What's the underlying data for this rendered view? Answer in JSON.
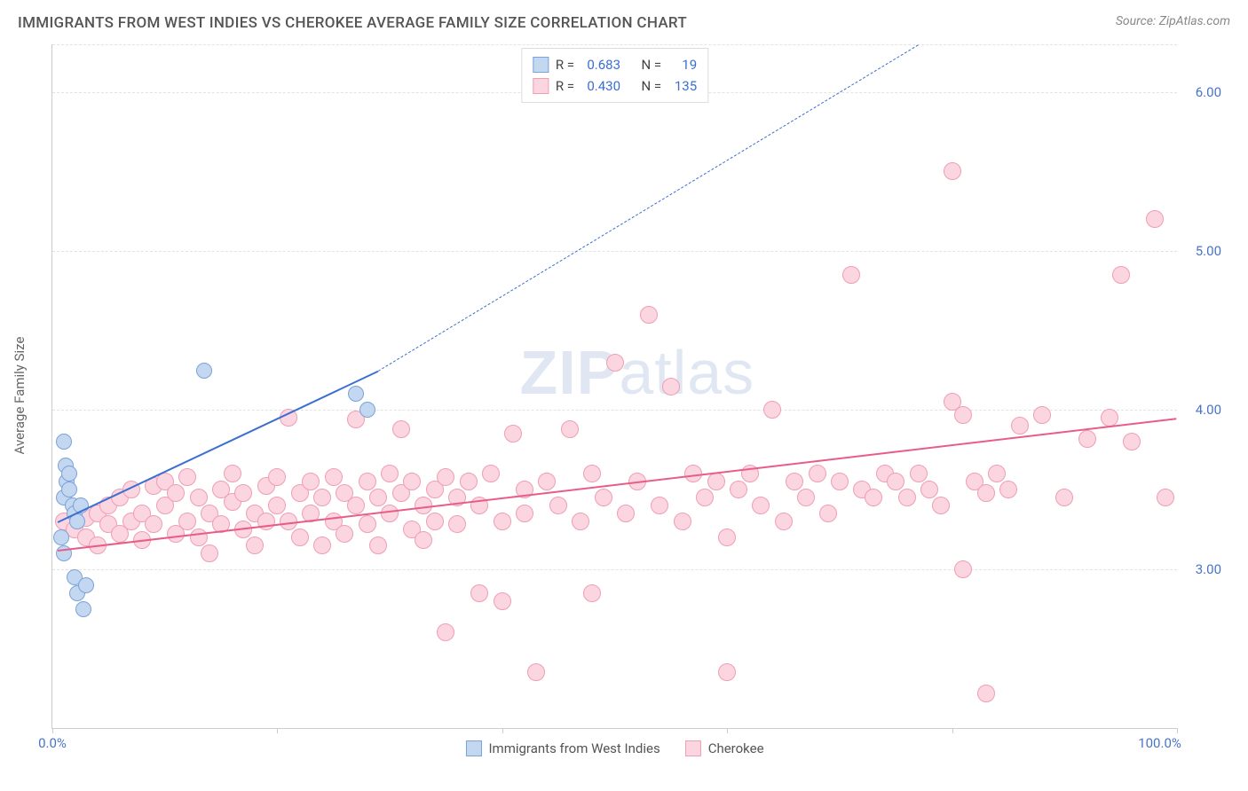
{
  "title": "IMMIGRANTS FROM WEST INDIES VS CHEROKEE AVERAGE FAMILY SIZE CORRELATION CHART",
  "source": "Source: ZipAtlas.com",
  "watermark": "ZIPatlas",
  "chart": {
    "type": "scatter",
    "ylabel": "Average Family Size",
    "xlim": [
      0,
      100
    ],
    "ylim": [
      2.0,
      6.3
    ],
    "xticks": [
      0,
      20,
      40,
      60,
      80,
      100
    ],
    "xtick_labels_shown": {
      "0": "0.0%",
      "100": "100.0%"
    },
    "ytick_values": [
      3.0,
      4.0,
      5.0,
      6.0
    ],
    "ytick_labels": [
      "3.00",
      "4.00",
      "5.00",
      "6.00"
    ],
    "grid_color": "#e3e3e3",
    "axis_color": "#cccccc",
    "background_color": "#ffffff",
    "tick_label_color": "#4a75c5",
    "axis_label_color": "#666666"
  },
  "series": [
    {
      "name": "Immigrants from West Indies",
      "color_fill": "#c3d7f0",
      "color_stroke": "#7ba3d9",
      "trend_color": "#3b6fd1",
      "marker_radius": 9,
      "r": "0.683",
      "n": "19",
      "trend": {
        "x1": 0.5,
        "y1": 3.3,
        "x2": 29,
        "y2": 4.25,
        "dash_to_x": 77,
        "dash_to_y": 6.3
      },
      "points": [
        [
          1.0,
          3.8
        ],
        [
          1.2,
          3.65
        ],
        [
          1.3,
          3.55
        ],
        [
          1.0,
          3.45
        ],
        [
          1.5,
          3.5
        ],
        [
          1.8,
          3.4
        ],
        [
          2.0,
          3.35
        ],
        [
          2.2,
          3.3
        ],
        [
          0.8,
          3.2
        ],
        [
          1.0,
          3.1
        ],
        [
          1.5,
          3.6
        ],
        [
          2.5,
          3.4
        ],
        [
          2.0,
          2.95
        ],
        [
          2.2,
          2.85
        ],
        [
          2.8,
          2.75
        ],
        [
          3.0,
          2.9
        ],
        [
          13.5,
          4.25
        ],
        [
          27.0,
          4.1
        ],
        [
          28.0,
          4.0
        ]
      ]
    },
    {
      "name": "Cherokee",
      "color_fill": "#fbd5df",
      "color_stroke": "#f09eb4",
      "trend_color": "#e85d87",
      "marker_radius": 10,
      "r": "0.430",
      "n": "135",
      "trend": {
        "x1": 0.5,
        "y1": 3.12,
        "x2": 100,
        "y2": 3.95
      },
      "points": [
        [
          1,
          3.3
        ],
        [
          2,
          3.25
        ],
        [
          3,
          3.32
        ],
        [
          3,
          3.2
        ],
        [
          4,
          3.35
        ],
        [
          4,
          3.15
        ],
        [
          5,
          3.28
        ],
        [
          5,
          3.4
        ],
        [
          6,
          3.22
        ],
        [
          6,
          3.45
        ],
        [
          7,
          3.3
        ],
        [
          7,
          3.5
        ],
        [
          8,
          3.18
        ],
        [
          8,
          3.35
        ],
        [
          9,
          3.52
        ],
        [
          9,
          3.28
        ],
        [
          10,
          3.4
        ],
        [
          10,
          3.55
        ],
        [
          11,
          3.22
        ],
        [
          11,
          3.48
        ],
        [
          12,
          3.3
        ],
        [
          12,
          3.58
        ],
        [
          13,
          3.2
        ],
        [
          13,
          3.45
        ],
        [
          14,
          3.35
        ],
        [
          14,
          3.1
        ],
        [
          15,
          3.5
        ],
        [
          15,
          3.28
        ],
        [
          16,
          3.42
        ],
        [
          16,
          3.6
        ],
        [
          17,
          3.25
        ],
        [
          17,
          3.48
        ],
        [
          18,
          3.35
        ],
        [
          18,
          3.15
        ],
        [
          19,
          3.52
        ],
        [
          19,
          3.3
        ],
        [
          20,
          3.4
        ],
        [
          20,
          3.58
        ],
        [
          21,
          3.95
        ],
        [
          21,
          3.3
        ],
        [
          22,
          3.48
        ],
        [
          22,
          3.2
        ],
        [
          23,
          3.55
        ],
        [
          23,
          3.35
        ],
        [
          24,
          3.15
        ],
        [
          24,
          3.45
        ],
        [
          25,
          3.3
        ],
        [
          25,
          3.58
        ],
        [
          26,
          3.48
        ],
        [
          26,
          3.22
        ],
        [
          27,
          3.94
        ],
        [
          27,
          3.4
        ],
        [
          28,
          3.55
        ],
        [
          28,
          3.28
        ],
        [
          29,
          3.45
        ],
        [
          29,
          3.15
        ],
        [
          30,
          3.35
        ],
        [
          30,
          3.6
        ],
        [
          31,
          3.88
        ],
        [
          31,
          3.48
        ],
        [
          32,
          3.25
        ],
        [
          32,
          3.55
        ],
        [
          33,
          3.4
        ],
        [
          33,
          3.18
        ],
        [
          34,
          3.5
        ],
        [
          34,
          3.3
        ],
        [
          35,
          2.6
        ],
        [
          35,
          3.58
        ],
        [
          36,
          3.45
        ],
        [
          36,
          3.28
        ],
        [
          37,
          3.55
        ],
        [
          38,
          2.85
        ],
        [
          38,
          3.4
        ],
        [
          39,
          3.6
        ],
        [
          40,
          3.3
        ],
        [
          40,
          2.8
        ],
        [
          41,
          3.85
        ],
        [
          42,
          3.5
        ],
        [
          42,
          3.35
        ],
        [
          43,
          2.35
        ],
        [
          44,
          3.55
        ],
        [
          45,
          3.4
        ],
        [
          46,
          3.88
        ],
        [
          47,
          3.3
        ],
        [
          48,
          2.85
        ],
        [
          48,
          3.6
        ],
        [
          49,
          3.45
        ],
        [
          50,
          4.3
        ],
        [
          51,
          3.35
        ],
        [
          52,
          3.55
        ],
        [
          53,
          4.6
        ],
        [
          54,
          3.4
        ],
        [
          55,
          4.15
        ],
        [
          56,
          3.3
        ],
        [
          57,
          3.6
        ],
        [
          58,
          3.45
        ],
        [
          59,
          3.55
        ],
        [
          60,
          3.2
        ],
        [
          60,
          2.35
        ],
        [
          61,
          3.5
        ],
        [
          62,
          3.6
        ],
        [
          63,
          3.4
        ],
        [
          64,
          4.0
        ],
        [
          65,
          3.3
        ],
        [
          66,
          3.55
        ],
        [
          67,
          3.45
        ],
        [
          68,
          3.6
        ],
        [
          69,
          3.35
        ],
        [
          70,
          3.55
        ],
        [
          71,
          4.85
        ],
        [
          72,
          3.5
        ],
        [
          73,
          3.45
        ],
        [
          74,
          3.6
        ],
        [
          75,
          3.55
        ],
        [
          76,
          3.45
        ],
        [
          77,
          3.6
        ],
        [
          78,
          3.5
        ],
        [
          79,
          3.4
        ],
        [
          80,
          5.5
        ],
        [
          80,
          4.05
        ],
        [
          81,
          3.97
        ],
        [
          81,
          3.0
        ],
        [
          82,
          3.55
        ],
        [
          83,
          3.48
        ],
        [
          83,
          2.22
        ],
        [
          84,
          3.6
        ],
        [
          85,
          3.5
        ],
        [
          86,
          3.9
        ],
        [
          88,
          3.97
        ],
        [
          90,
          3.45
        ],
        [
          92,
          3.82
        ],
        [
          94,
          3.95
        ],
        [
          95,
          4.85
        ],
        [
          96,
          3.8
        ],
        [
          98,
          5.2
        ],
        [
          99,
          3.45
        ]
      ]
    }
  ]
}
